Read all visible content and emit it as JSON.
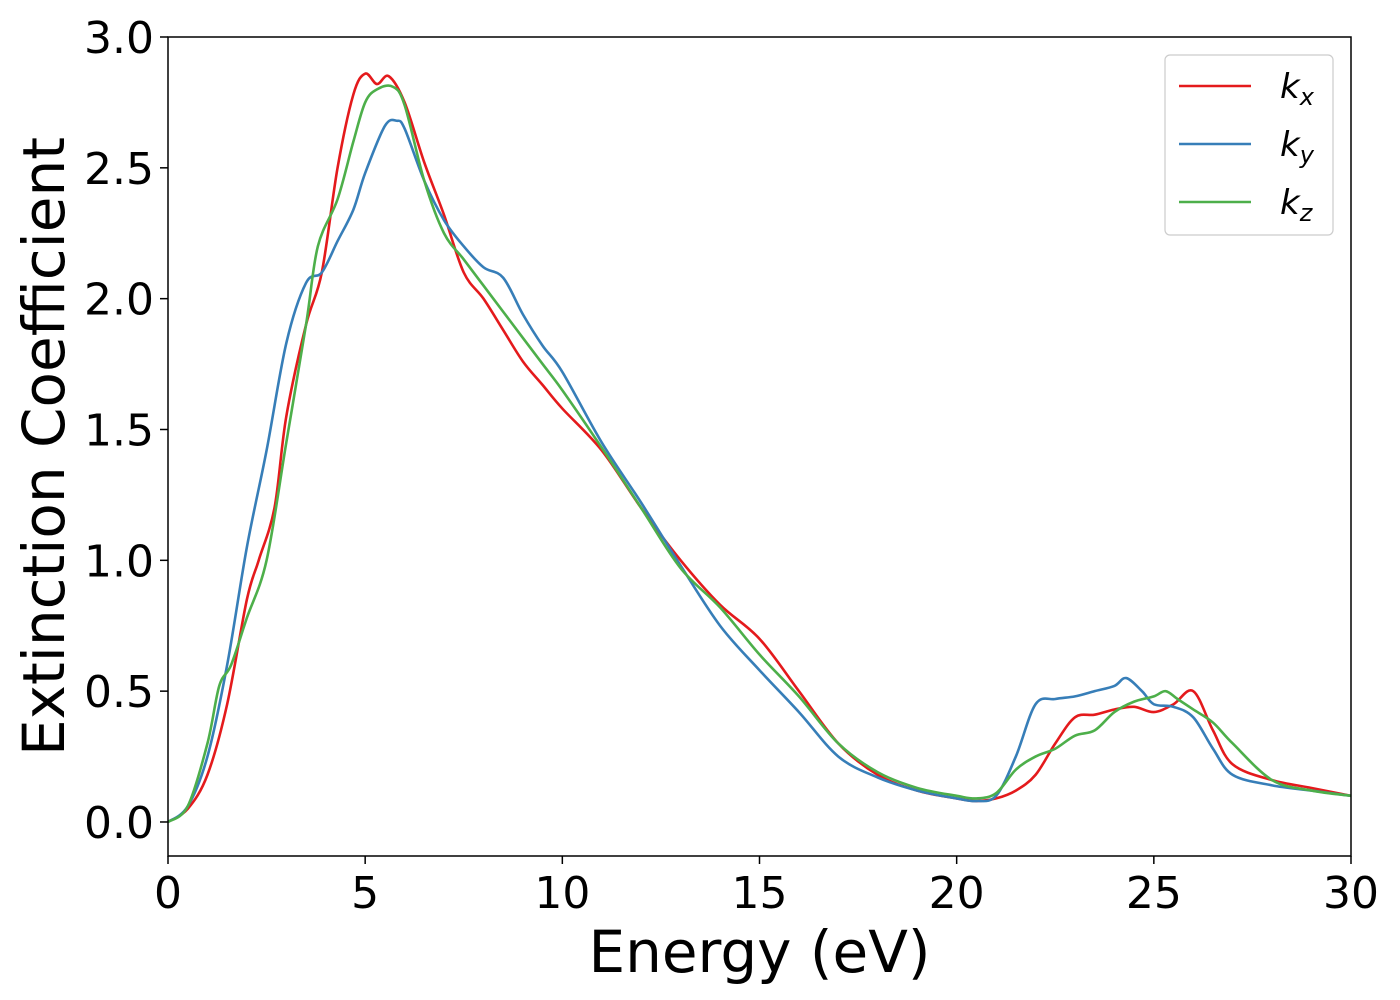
{
  "chart_data": {
    "type": "line",
    "title": "",
    "xlabel": "Energy (eV)",
    "ylabel": "Extinction Coefficient",
    "xlim": [
      0,
      30
    ],
    "ylim": [
      -0.13,
      3.0
    ],
    "xticks": [
      0,
      5,
      10,
      15,
      20,
      25,
      30
    ],
    "yticks": [
      0.0,
      0.5,
      1.0,
      1.5,
      2.0,
      2.5,
      3.0
    ],
    "grid": false,
    "legend_position": "top-right",
    "series": [
      {
        "name": "k_x",
        "label_main": "k",
        "label_sub": "x",
        "color": "#e41a1c",
        "x": [
          0,
          0.5,
          1.0,
          1.5,
          2.0,
          2.3,
          2.7,
          3.0,
          3.5,
          3.9,
          4.3,
          4.7,
          5.0,
          5.3,
          5.6,
          6.0,
          6.5,
          7.0,
          7.5,
          8.0,
          8.5,
          9.0,
          9.5,
          10.0,
          11.0,
          12.0,
          13.0,
          14.0,
          15.0,
          16.0,
          17.0,
          18.0,
          19.0,
          20.0,
          20.5,
          21.0,
          21.5,
          22.0,
          22.5,
          23.0,
          23.5,
          24.0,
          24.5,
          25.0,
          25.5,
          26.0,
          26.5,
          27.0,
          28.0,
          29.0,
          30.0
        ],
        "y": [
          0.0,
          0.05,
          0.18,
          0.45,
          0.85,
          1.0,
          1.2,
          1.55,
          1.9,
          2.1,
          2.5,
          2.78,
          2.86,
          2.82,
          2.85,
          2.75,
          2.52,
          2.32,
          2.1,
          2.0,
          1.88,
          1.76,
          1.67,
          1.58,
          1.42,
          1.2,
          1.0,
          0.83,
          0.7,
          0.5,
          0.3,
          0.18,
          0.12,
          0.09,
          0.08,
          0.09,
          0.12,
          0.18,
          0.3,
          0.4,
          0.41,
          0.43,
          0.44,
          0.42,
          0.45,
          0.5,
          0.35,
          0.22,
          0.16,
          0.13,
          0.1
        ]
      },
      {
        "name": "k_y",
        "label_main": "k",
        "label_sub": "y",
        "color": "#377eb8",
        "x": [
          0,
          0.5,
          1.0,
          1.5,
          2.0,
          2.5,
          3.0,
          3.5,
          3.9,
          4.3,
          4.7,
          5.0,
          5.5,
          5.8,
          6.0,
          6.5,
          7.0,
          7.5,
          8.0,
          8.5,
          9.0,
          9.5,
          10.0,
          11.0,
          12.0,
          13.0,
          14.0,
          15.0,
          16.0,
          17.0,
          18.0,
          19.0,
          20.0,
          20.5,
          21.0,
          21.5,
          22.0,
          22.5,
          23.0,
          23.5,
          24.0,
          24.3,
          24.7,
          25.0,
          25.5,
          26.0,
          26.5,
          27.0,
          28.0,
          29.0,
          30.0
        ],
        "y": [
          0.0,
          0.06,
          0.25,
          0.6,
          1.05,
          1.42,
          1.83,
          2.06,
          2.1,
          2.22,
          2.34,
          2.48,
          2.66,
          2.68,
          2.65,
          2.45,
          2.3,
          2.2,
          2.12,
          2.08,
          1.94,
          1.82,
          1.72,
          1.45,
          1.22,
          0.98,
          0.75,
          0.58,
          0.42,
          0.25,
          0.17,
          0.12,
          0.09,
          0.08,
          0.1,
          0.25,
          0.45,
          0.47,
          0.48,
          0.5,
          0.52,
          0.55,
          0.5,
          0.45,
          0.44,
          0.4,
          0.28,
          0.18,
          0.14,
          0.12,
          0.1
        ]
      },
      {
        "name": "k_z",
        "label_main": "k",
        "label_sub": "z",
        "color": "#4daf4a",
        "x": [
          0,
          0.5,
          1.0,
          1.3,
          1.6,
          2.0,
          2.5,
          3.0,
          3.5,
          3.8,
          4.3,
          4.7,
          5.0,
          5.3,
          5.7,
          6.0,
          6.5,
          7.0,
          7.5,
          8.0,
          8.5,
          9.0,
          9.5,
          10.0,
          11.0,
          12.0,
          13.0,
          14.0,
          15.0,
          16.0,
          17.0,
          18.0,
          19.0,
          20.0,
          20.5,
          21.0,
          21.5,
          22.0,
          22.5,
          23.0,
          23.5,
          24.0,
          24.5,
          25.0,
          25.3,
          25.6,
          26.0,
          26.5,
          27.0,
          28.0,
          29.0,
          30.0
        ],
        "y": [
          0.0,
          0.06,
          0.3,
          0.52,
          0.6,
          0.78,
          1.0,
          1.45,
          1.9,
          2.2,
          2.38,
          2.6,
          2.75,
          2.8,
          2.81,
          2.74,
          2.45,
          2.25,
          2.15,
          2.05,
          1.95,
          1.85,
          1.75,
          1.65,
          1.43,
          1.2,
          0.97,
          0.82,
          0.64,
          0.48,
          0.3,
          0.19,
          0.13,
          0.1,
          0.09,
          0.11,
          0.2,
          0.25,
          0.28,
          0.33,
          0.35,
          0.42,
          0.46,
          0.48,
          0.5,
          0.47,
          0.43,
          0.38,
          0.3,
          0.16,
          0.12,
          0.1
        ]
      }
    ]
  }
}
